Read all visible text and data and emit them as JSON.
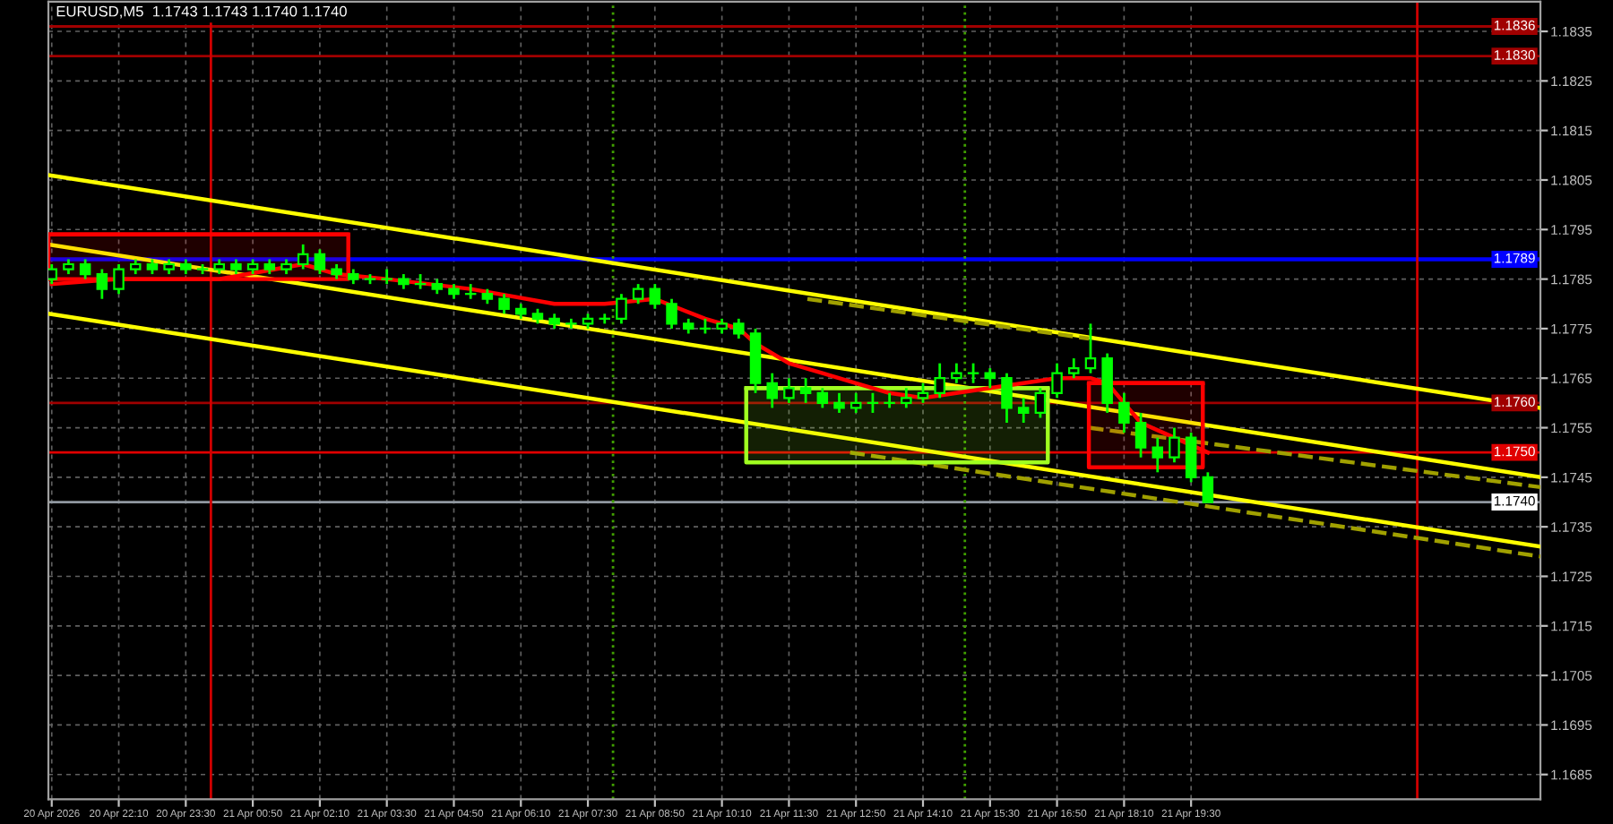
{
  "chart_data": {
    "type": "candlestick",
    "title": "EURUSD,M5  1.1743 1.1743 1.1740 1.1740",
    "xlim": [
      "2026-04-20T20:46",
      "2026-04-22T02:27"
    ],
    "ylim": [
      1.168,
      1.1841
    ],
    "yticks": [
      1.1685,
      1.1695,
      1.1705,
      1.1715,
      1.1725,
      1.1735,
      1.1745,
      1.1755,
      1.1765,
      1.1775,
      1.1785,
      1.1795,
      1.1805,
      1.1815,
      1.1825,
      1.1835
    ],
    "xticks": [
      {
        "value": "2026-04-20T20:50",
        "label": "20 Apr 2026"
      },
      {
        "value": "2026-04-20T22:10",
        "label": "20 Apr 22:10"
      },
      {
        "value": "2026-04-20T23:30",
        "label": "20 Apr 23:30"
      },
      {
        "value": "2026-04-21T00:50",
        "label": "21 Apr 00:50"
      },
      {
        "value": "2026-04-21T02:10",
        "label": "21 Apr 02:10"
      },
      {
        "value": "2026-04-21T03:30",
        "label": "21 Apr 03:30"
      },
      {
        "value": "2026-04-21T04:50",
        "label": "21 Apr 04:50"
      },
      {
        "value": "2026-04-21T06:10",
        "label": "21 Apr 06:10"
      },
      {
        "value": "2026-04-21T07:30",
        "label": "21 Apr 07:30"
      },
      {
        "value": "2026-04-21T08:50",
        "label": "21 Apr 08:50"
      },
      {
        "value": "2026-04-21T10:10",
        "label": "21 Apr 10:10"
      },
      {
        "value": "2026-04-21T11:30",
        "label": "21 Apr 11:30"
      },
      {
        "value": "2026-04-21T12:50",
        "label": "21 Apr 12:50"
      },
      {
        "value": "2026-04-21T14:10",
        "label": "21 Apr 14:10"
      },
      {
        "value": "2026-04-21T15:30",
        "label": "21 Apr 15:30"
      },
      {
        "value": "2026-04-21T16:50",
        "label": "21 Apr 16:50"
      },
      {
        "value": "2026-04-21T18:10",
        "label": "21 Apr 18:10"
      },
      {
        "value": "2026-04-21T19:30",
        "label": "21 Apr 19:30"
      }
    ],
    "grid": true,
    "ref_lines": [
      {
        "axis": "y",
        "value": 1.1836,
        "label": "1.1836",
        "color": "#a00000",
        "line_style": "solid"
      },
      {
        "axis": "y",
        "value": 1.183,
        "label": "1.1830",
        "color": "#a00000",
        "line_style": "solid"
      },
      {
        "axis": "y",
        "value": 1.1789,
        "label": "1.1789",
        "color": "#0000ff",
        "line_style": "solid"
      },
      {
        "axis": "y",
        "value": 1.176,
        "label": "1.1760",
        "color": "#a00000",
        "line_style": "solid"
      },
      {
        "axis": "y",
        "value": 1.175,
        "label": "1.1750",
        "color": "#e00000",
        "line_style": "solid"
      },
      {
        "axis": "y",
        "value": 1.174,
        "label": "1.1740",
        "color": "#9098a0",
        "line_style": "solid"
      },
      {
        "axis": "x",
        "value": "2026-04-21T00:00",
        "color": "#d00000",
        "line_style": "solid"
      },
      {
        "axis": "x",
        "value": "2026-04-22T00:00",
        "color": "#d00000",
        "line_style": "solid"
      },
      {
        "axis": "x",
        "value": "2026-04-21T08:00",
        "color": "#40a000",
        "line_style": "dotted"
      },
      {
        "axis": "x",
        "value": "2026-04-21T15:00",
        "color": "#40a000",
        "line_style": "dotted"
      }
    ],
    "series": [
      {
        "type": "line",
        "color": "#ffff00",
        "line_style": "solid",
        "x": [
          "2026-04-20T20:46",
          "2026-04-22T02:27"
        ],
        "values": [
          1.1806,
          1.1759
        ]
      },
      {
        "type": "line",
        "color": "#ffff00",
        "line_style": "solid",
        "x": [
          "2026-04-20T20:46",
          "2026-04-22T02:27"
        ],
        "values": [
          1.1792,
          1.1745
        ]
      },
      {
        "type": "line",
        "color": "#ffff00",
        "line_style": "solid",
        "x": [
          "2026-04-20T20:46",
          "2026-04-22T02:27"
        ],
        "values": [
          1.1778,
          1.1731
        ]
      },
      {
        "type": "line",
        "color": "#a0a000",
        "line_style": "dashed",
        "x": [
          "2026-04-21T11:52",
          "2026-04-21T17:28"
        ],
        "values": [
          1.1781,
          1.1773
        ]
      },
      {
        "type": "line",
        "color": "#a0a000",
        "line_style": "dashed",
        "x": [
          "2026-04-21T17:28",
          "2026-04-22T02:27"
        ],
        "values": [
          1.1755,
          1.1743
        ]
      },
      {
        "type": "line",
        "color": "#a0a000",
        "line_style": "dashed",
        "x": [
          "2026-04-21T12:43",
          "2026-04-22T02:27"
        ],
        "values": [
          1.175,
          1.1729
        ]
      },
      {
        "type": "line",
        "color": "#ff0000",
        "line_style": "solid",
        "x": [
          "2026-04-20T20:46",
          "2026-04-21T02:44"
        ],
        "values": [
          1.1794,
          1.1794
        ],
        "lower": [
          1.1785,
          1.1785
        ],
        "upper": [
          1.1794,
          1.1794
        ]
      },
      {
        "type": "line",
        "color": "#a0ff20",
        "line_style": "solid",
        "x": [
          "2026-04-21T10:39",
          "2026-04-21T16:39"
        ],
        "values": [
          1.1763,
          1.1763
        ],
        "lower": [
          1.1748,
          1.1748
        ],
        "upper": [
          1.1763,
          1.1763
        ]
      },
      {
        "type": "line",
        "color": "#ff0000",
        "line_style": "solid",
        "x": [
          "2026-04-21T17:28",
          "2026-04-21T19:44"
        ],
        "values": [
          1.1764,
          1.1764
        ],
        "lower": [
          1.1747,
          1.1747
        ],
        "upper": [
          1.1764,
          1.1764
        ]
      },
      {
        "type": "candlestick",
        "color": "#00ff00",
        "x": [
          "2026-04-20T20:50",
          "2026-04-20T21:10",
          "2026-04-20T21:30",
          "2026-04-20T21:50",
          "2026-04-20T22:10",
          "2026-04-20T22:30",
          "2026-04-20T22:50",
          "2026-04-20T23:10",
          "2026-04-20T23:30",
          "2026-04-20T23:50",
          "2026-04-21T00:10",
          "2026-04-21T00:30",
          "2026-04-21T00:50",
          "2026-04-21T01:10",
          "2026-04-21T01:30",
          "2026-04-21T01:50",
          "2026-04-21T02:10",
          "2026-04-21T02:30",
          "2026-04-21T02:50",
          "2026-04-21T03:10",
          "2026-04-21T03:30",
          "2026-04-21T03:50",
          "2026-04-21T04:10",
          "2026-04-21T04:30",
          "2026-04-21T04:50",
          "2026-04-21T05:10",
          "2026-04-21T05:30",
          "2026-04-21T05:50",
          "2026-04-21T06:10",
          "2026-04-21T06:30",
          "2026-04-21T06:50",
          "2026-04-21T07:10",
          "2026-04-21T07:30",
          "2026-04-21T07:50",
          "2026-04-21T08:10",
          "2026-04-21T08:30",
          "2026-04-21T08:50",
          "2026-04-21T09:10",
          "2026-04-21T09:30",
          "2026-04-21T09:50",
          "2026-04-21T10:10",
          "2026-04-21T10:30",
          "2026-04-21T10:50",
          "2026-04-21T11:10",
          "2026-04-21T11:30",
          "2026-04-21T11:50",
          "2026-04-21T12:10",
          "2026-04-21T12:30",
          "2026-04-21T12:50",
          "2026-04-21T13:10",
          "2026-04-21T13:30",
          "2026-04-21T13:50",
          "2026-04-21T14:10",
          "2026-04-21T14:30",
          "2026-04-21T14:50",
          "2026-04-21T15:10",
          "2026-04-21T15:30",
          "2026-04-21T15:50",
          "2026-04-21T16:10",
          "2026-04-21T16:30",
          "2026-04-21T16:50",
          "2026-04-21T17:10",
          "2026-04-21T17:30",
          "2026-04-21T17:50",
          "2026-04-21T18:10",
          "2026-04-21T18:30",
          "2026-04-21T18:50",
          "2026-04-21T19:10",
          "2026-04-21T19:30",
          "2026-04-21T19:50"
        ],
        "ohlc": [
          [
            1.1785,
            1.1788,
            1.1784,
            1.1787
          ],
          [
            1.1787,
            1.1789,
            1.1786,
            1.1788
          ],
          [
            1.1788,
            1.1789,
            1.1785,
            1.1786
          ],
          [
            1.1786,
            1.1787,
            1.1781,
            1.1783
          ],
          [
            1.1783,
            1.1788,
            1.1782,
            1.1787
          ],
          [
            1.1787,
            1.1789,
            1.1786,
            1.1788
          ],
          [
            1.1788,
            1.1789,
            1.1786,
            1.1787
          ],
          [
            1.1787,
            1.1789,
            1.1786,
            1.1788
          ],
          [
            1.1788,
            1.1789,
            1.1786,
            1.1787
          ],
          [
            1.1787,
            1.1788,
            1.1786,
            1.1787
          ],
          [
            1.1787,
            1.1789,
            1.1786,
            1.1788
          ],
          [
            1.1788,
            1.1789,
            1.1786,
            1.1787
          ],
          [
            1.1787,
            1.1789,
            1.1786,
            1.1788
          ],
          [
            1.1788,
            1.1789,
            1.1786,
            1.1787
          ],
          [
            1.1787,
            1.1789,
            1.1786,
            1.1788
          ],
          [
            1.1788,
            1.1792,
            1.1787,
            1.179
          ],
          [
            1.179,
            1.1791,
            1.1786,
            1.1787
          ],
          [
            1.1787,
            1.1788,
            1.1785,
            1.1786
          ],
          [
            1.1786,
            1.1787,
            1.1784,
            1.1785
          ],
          [
            1.1785,
            1.1786,
            1.1784,
            1.1785
          ],
          [
            1.1785,
            1.1787,
            1.1784,
            1.1785
          ],
          [
            1.1785,
            1.1786,
            1.1783,
            1.1784
          ],
          [
            1.1784,
            1.1786,
            1.1783,
            1.1784
          ],
          [
            1.1784,
            1.1785,
            1.1782,
            1.1783
          ],
          [
            1.1783,
            1.1784,
            1.1781,
            1.1782
          ],
          [
            1.1782,
            1.1784,
            1.1781,
            1.1782
          ],
          [
            1.1782,
            1.1783,
            1.178,
            1.1781
          ],
          [
            1.1781,
            1.1782,
            1.1778,
            1.1779
          ],
          [
            1.1779,
            1.178,
            1.1777,
            1.1778
          ],
          [
            1.1778,
            1.1779,
            1.1776,
            1.1777
          ],
          [
            1.1777,
            1.1778,
            1.1775,
            1.1776
          ],
          [
            1.1776,
            1.1777,
            1.1775,
            1.1776
          ],
          [
            1.1776,
            1.1778,
            1.1775,
            1.1777
          ],
          [
            1.1777,
            1.1778,
            1.1776,
            1.1777
          ],
          [
            1.1777,
            1.1782,
            1.1776,
            1.1781
          ],
          [
            1.1781,
            1.1784,
            1.178,
            1.1783
          ],
          [
            1.1783,
            1.1784,
            1.1779,
            1.178
          ],
          [
            1.178,
            1.1781,
            1.1775,
            1.1776
          ],
          [
            1.1776,
            1.1777,
            1.1774,
            1.1775
          ],
          [
            1.1775,
            1.1777,
            1.1774,
            1.1775
          ],
          [
            1.1775,
            1.1777,
            1.1774,
            1.1776
          ],
          [
            1.1776,
            1.1777,
            1.1773,
            1.1774
          ],
          [
            1.1774,
            1.1775,
            1.1762,
            1.1764
          ],
          [
            1.1764,
            1.1766,
            1.1759,
            1.1761
          ],
          [
            1.1761,
            1.1765,
            1.176,
            1.1763
          ],
          [
            1.1763,
            1.1765,
            1.176,
            1.1762
          ],
          [
            1.1762,
            1.1763,
            1.1759,
            1.176
          ],
          [
            1.176,
            1.1762,
            1.1758,
            1.1759
          ],
          [
            1.1759,
            1.1762,
            1.1758,
            1.176
          ],
          [
            1.176,
            1.1762,
            1.1758,
            1.176
          ],
          [
            1.176,
            1.1762,
            1.1759,
            1.176
          ],
          [
            1.176,
            1.1763,
            1.1759,
            1.1761
          ],
          [
            1.1761,
            1.1764,
            1.176,
            1.1762
          ],
          [
            1.1762,
            1.1768,
            1.1761,
            1.1765
          ],
          [
            1.1765,
            1.1768,
            1.1764,
            1.1766
          ],
          [
            1.1766,
            1.1768,
            1.1764,
            1.1766
          ],
          [
            1.1766,
            1.1767,
            1.1763,
            1.1765
          ],
          [
            1.1765,
            1.1766,
            1.1756,
            1.1759
          ],
          [
            1.1759,
            1.1761,
            1.1756,
            1.1758
          ],
          [
            1.1758,
            1.1763,
            1.1757,
            1.1762
          ],
          [
            1.1762,
            1.1768,
            1.1761,
            1.1766
          ],
          [
            1.1766,
            1.1769,
            1.1765,
            1.1767
          ],
          [
            1.1767,
            1.1776,
            1.1766,
            1.1769
          ],
          [
            1.1769,
            1.177,
            1.1758,
            1.176
          ],
          [
            1.176,
            1.1762,
            1.1754,
            1.1756
          ],
          [
            1.1756,
            1.1758,
            1.1749,
            1.1751
          ],
          [
            1.1751,
            1.1753,
            1.1746,
            1.1749
          ],
          [
            1.1749,
            1.1755,
            1.1748,
            1.1753
          ],
          [
            1.1753,
            1.1754,
            1.1744,
            1.1745
          ],
          [
            1.1745,
            1.1746,
            1.174,
            1.174
          ]
        ]
      },
      {
        "type": "line",
        "color": "#ff0000",
        "line_style": "solid",
        "x": [
          "2026-04-20T20:50",
          "2026-04-20T22:10",
          "2026-04-21T00:10",
          "2026-04-21T01:50",
          "2026-04-21T02:30",
          "2026-04-21T03:30",
          "2026-04-21T05:10",
          "2026-04-21T06:50",
          "2026-04-21T07:50",
          "2026-04-21T08:50",
          "2026-04-21T09:50",
          "2026-04-21T10:30",
          "2026-04-21T10:50",
          "2026-04-21T11:30",
          "2026-04-21T12:10",
          "2026-04-21T12:50",
          "2026-04-21T13:30",
          "2026-04-21T14:10",
          "2026-04-21T14:50",
          "2026-04-21T15:30",
          "2026-04-21T16:10",
          "2026-04-21T16:50",
          "2026-04-21T17:30",
          "2026-04-21T17:50",
          "2026-04-21T18:10",
          "2026-04-21T18:30",
          "2026-04-21T19:10",
          "2026-04-21T19:50"
        ],
        "values": [
          1.1784,
          1.1785,
          1.1785,
          1.1788,
          1.1786,
          1.1785,
          1.1783,
          1.178,
          1.178,
          1.1781,
          1.1777,
          1.1775,
          1.1772,
          1.1768,
          1.1766,
          1.1764,
          1.1762,
          1.1761,
          1.1762,
          1.1763,
          1.1764,
          1.1765,
          1.1765,
          1.1764,
          1.176,
          1.1756,
          1.1753,
          1.175
        ]
      }
    ]
  }
}
